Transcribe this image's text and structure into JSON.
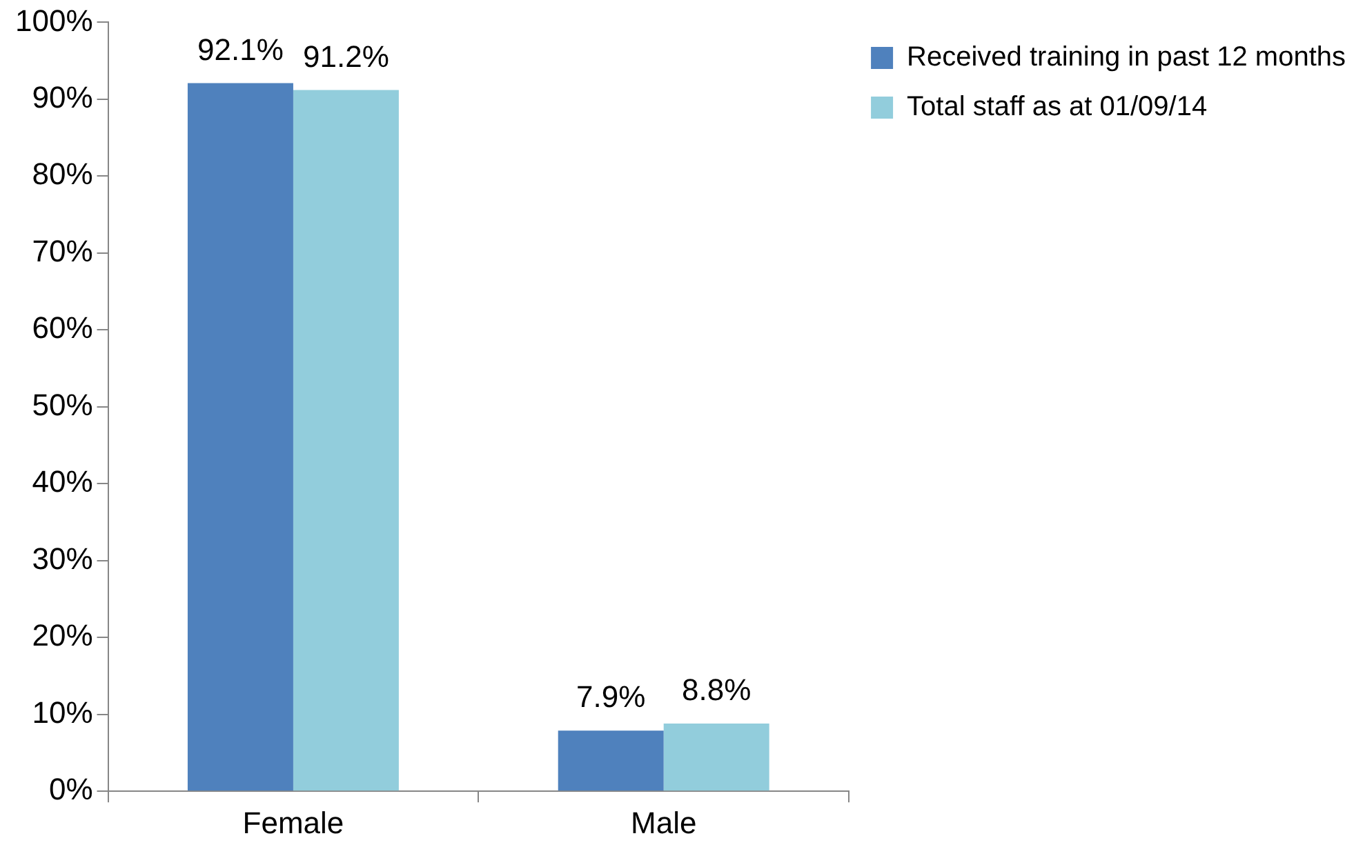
{
  "chart_data": {
    "type": "bar",
    "categories": [
      "Female",
      "Male"
    ],
    "series": [
      {
        "name": "Received training in past 12 months",
        "color": "#4f81bd",
        "values": [
          92.1,
          7.9
        ],
        "value_labels": [
          "92.1%",
          "7.9%"
        ]
      },
      {
        "name": "Total staff as at 01/09/14",
        "color": "#92cddc",
        "values": [
          91.2,
          8.8
        ],
        "value_labels": [
          "91.2%",
          "8.8%"
        ]
      }
    ],
    "ylim": [
      0,
      100
    ],
    "yticks": [
      {
        "value": 0,
        "label": "0%"
      },
      {
        "value": 10,
        "label": "10%"
      },
      {
        "value": 20,
        "label": "20%"
      },
      {
        "value": 30,
        "label": "30%"
      },
      {
        "value": 40,
        "label": "40%"
      },
      {
        "value": 50,
        "label": "50%"
      },
      {
        "value": 60,
        "label": "60%"
      },
      {
        "value": 70,
        "label": "70%"
      },
      {
        "value": 80,
        "label": "80%"
      },
      {
        "value": 90,
        "label": "90%"
      },
      {
        "value": 100,
        "label": "100%"
      }
    ],
    "grid": false,
    "legend": "top right"
  }
}
